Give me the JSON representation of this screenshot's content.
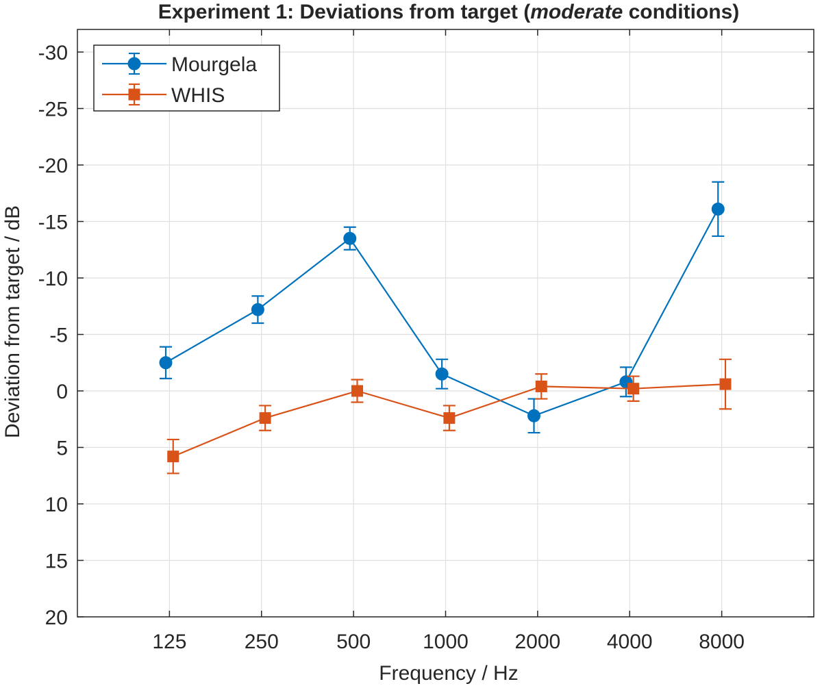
{
  "chart_data": {
    "type": "line",
    "title_parts": [
      "Experiment 1: Deviations from target (",
      "moderate",
      " conditions)"
    ],
    "xlabel": "Frequency / Hz",
    "ylabel": "Deviation from target / dB",
    "categories": [
      "125",
      "250",
      "500",
      "1000",
      "2000",
      "4000",
      "8000"
    ],
    "xlim": [
      0,
      8
    ],
    "ylim": [
      20,
      -32
    ],
    "y_reversed": true,
    "yticks": [
      20,
      15,
      10,
      5,
      0,
      -5,
      -10,
      -15,
      -20,
      -25,
      -30
    ],
    "ytick_labels": [
      "20",
      "15",
      "10",
      "5",
      "0",
      "-5",
      "-10",
      "-15",
      "-20",
      "-25",
      "-30"
    ],
    "grid": true,
    "legend_position": "top-left",
    "series": [
      {
        "name": "Mourgela",
        "color": "#0072bd",
        "marker": "circle",
        "x": [
          0.96,
          1.96,
          2.96,
          3.96,
          4.96,
          5.96,
          6.96
        ],
        "values": [
          -2.5,
          -7.2,
          -13.5,
          -1.5,
          2.2,
          -0.8,
          -16.1
        ],
        "errors": [
          1.4,
          1.2,
          1.0,
          1.3,
          1.5,
          1.3,
          2.4
        ]
      },
      {
        "name": "WHIS",
        "color": "#d95319",
        "marker": "square",
        "x": [
          1.04,
          2.04,
          3.04,
          4.04,
          5.04,
          6.04,
          7.04
        ],
        "values": [
          5.8,
          2.4,
          0.0,
          2.4,
          -0.4,
          -0.2,
          -0.6
        ],
        "errors": [
          1.5,
          1.1,
          1.0,
          1.1,
          1.1,
          1.1,
          2.2
        ]
      }
    ]
  }
}
